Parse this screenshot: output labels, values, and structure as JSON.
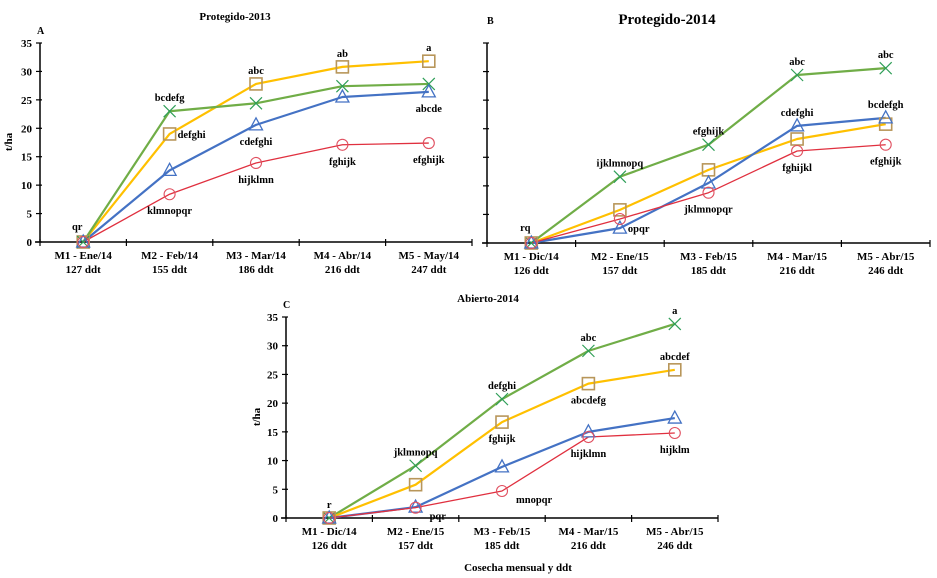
{
  "figure": {
    "x_caption": "Cosecha mensual y ddt"
  },
  "chart_data": [
    {
      "type": "line",
      "panel": "A",
      "title": "Protegido-2013",
      "xlabel": "",
      "ylabel": "t/ha",
      "ylim": [
        0,
        35
      ],
      "yticks": [
        "0",
        "5",
        "10",
        "15",
        "20",
        "25",
        "30",
        "35"
      ],
      "show_ytick_labels": true,
      "grid": false,
      "categories": [
        {
          "line1": "M1 - Ene/14",
          "line2": "127 ddt"
        },
        {
          "line1": "M2 - Feb/14",
          "line2": "155 ddt"
        },
        {
          "line1": "M3 - Mar/14",
          "line2": "186 ddt"
        },
        {
          "line1": "M4 - Abr/14",
          "line2": "216 ddt"
        },
        {
          "line1": "M5 - May/14",
          "line2": "247 ddt"
        }
      ],
      "series": [
        {
          "name": "square",
          "marker": "square",
          "line_color": "#FFC000",
          "marker_color": "#B8965A",
          "values": [
            0,
            19.0,
            27.8,
            30.8,
            31.8
          ]
        },
        {
          "name": "x",
          "marker": "x",
          "line_color": "#70AD47",
          "marker_color": "#2E9E57",
          "values": [
            0,
            23.0,
            24.4,
            27.4,
            27.8
          ]
        },
        {
          "name": "triangle",
          "marker": "triangle",
          "line_color": "#4472C4",
          "marker_color": "#4472C4",
          "values": [
            0,
            12.6,
            20.6,
            25.5,
            26.4
          ]
        },
        {
          "name": "circle",
          "marker": "circle",
          "line_color": "#E0303F",
          "marker_color": "#E05060",
          "values": [
            0,
            8.4,
            13.9,
            17.1,
            17.4
          ]
        }
      ],
      "annotations": [
        {
          "text": "qr",
          "cat": 0,
          "value": 0,
          "pos": "above-left"
        },
        {
          "text": "bcdefg",
          "cat": 1,
          "value": 23.0,
          "pos": "above"
        },
        {
          "text": "defghi",
          "cat": 1,
          "value": 19.0,
          "pos": "right"
        },
        {
          "text": "klmnopqr",
          "cat": 1,
          "value": 8.4,
          "pos": "below"
        },
        {
          "text": "abc",
          "cat": 2,
          "value": 27.8,
          "pos": "above"
        },
        {
          "text": "cdefghi",
          "cat": 2,
          "value": 20.6,
          "pos": "below"
        },
        {
          "text": "hijklmn",
          "cat": 2,
          "value": 13.9,
          "pos": "below"
        },
        {
          "text": "ab",
          "cat": 3,
          "value": 30.8,
          "pos": "above"
        },
        {
          "text": "fghijk",
          "cat": 3,
          "value": 17.1,
          "pos": "below"
        },
        {
          "text": "a",
          "cat": 4,
          "value": 31.8,
          "pos": "above"
        },
        {
          "text": "abcde",
          "cat": 4,
          "value": 26.4,
          "pos": "below"
        },
        {
          "text": "efghijk",
          "cat": 4,
          "value": 17.4,
          "pos": "below"
        }
      ]
    },
    {
      "type": "line",
      "panel": "B",
      "title": "Protegido-2014",
      "xlabel": "",
      "ylabel": "",
      "ylim": [
        0,
        35
      ],
      "yticks": [
        "0",
        "5",
        "10",
        "15",
        "20",
        "25",
        "30",
        "35"
      ],
      "show_ytick_labels": false,
      "grid": false,
      "categories": [
        {
          "line1": "M1 - Dic/14",
          "line2": "126 ddt"
        },
        {
          "line1": "M2 - Ene/15",
          "line2": "157 ddt"
        },
        {
          "line1": "M3 - Feb/15",
          "line2": "185 ddt"
        },
        {
          "line1": "M4 - Mar/15",
          "line2": "216 ddt"
        },
        {
          "line1": "M5 - Abr/15",
          "line2": "246 ddt"
        }
      ],
      "series": [
        {
          "name": "x",
          "marker": "x",
          "line_color": "#70AD47",
          "marker_color": "#2E9E57",
          "values": [
            0,
            11.6,
            17.2,
            29.4,
            30.6
          ]
        },
        {
          "name": "square",
          "marker": "square",
          "line_color": "#FFC000",
          "marker_color": "#B8965A",
          "values": [
            0,
            5.8,
            12.8,
            18.2,
            20.8
          ]
        },
        {
          "name": "triangle",
          "marker": "triangle",
          "line_color": "#4472C4",
          "marker_color": "#4472C4",
          "values": [
            0,
            2.6,
            10.5,
            20.5,
            21.9
          ]
        },
        {
          "name": "circle",
          "marker": "circle",
          "line_color": "#E0303F",
          "marker_color": "#E05060",
          "values": [
            0,
            4.2,
            8.8,
            16.1,
            17.2
          ]
        }
      ],
      "annotations": [
        {
          "text": "rq",
          "cat": 0,
          "value": 0,
          "pos": "above-left"
        },
        {
          "text": "ijklmnopq",
          "cat": 1,
          "value": 11.6,
          "pos": "above"
        },
        {
          "text": "opqr",
          "cat": 1,
          "value": 2.6,
          "pos": "right"
        },
        {
          "text": "efghijk",
          "cat": 2,
          "value": 17.2,
          "pos": "above"
        },
        {
          "text": "jklmnopqr",
          "cat": 2,
          "value": 8.8,
          "pos": "below"
        },
        {
          "text": "abc",
          "cat": 3,
          "value": 29.4,
          "pos": "above"
        },
        {
          "text": "cdefghi",
          "cat": 3,
          "value": 20.5,
          "pos": "above"
        },
        {
          "text": "fghijkl",
          "cat": 3,
          "value": 16.1,
          "pos": "below"
        },
        {
          "text": "abc",
          "cat": 4,
          "value": 30.6,
          "pos": "above"
        },
        {
          "text": "bcdefgh",
          "cat": 4,
          "value": 21.9,
          "pos": "above"
        },
        {
          "text": "efghijk",
          "cat": 4,
          "value": 17.2,
          "pos": "below"
        }
      ]
    },
    {
      "type": "line",
      "panel": "C",
      "title": "Abierto-2014",
      "xlabel": "Cosecha mensual y ddt",
      "ylabel": "t/ha",
      "ylim": [
        0,
        35
      ],
      "yticks": [
        "0",
        "5",
        "10",
        "15",
        "20",
        "25",
        "30",
        "35"
      ],
      "show_ytick_labels": true,
      "grid": false,
      "categories": [
        {
          "line1": "M1 - Dic/14",
          "line2": "126 ddt"
        },
        {
          "line1": "M2 - Ene/15",
          "line2": "157 ddt"
        },
        {
          "line1": "M3 - Feb/15",
          "line2": "185 ddt"
        },
        {
          "line1": "M4 - Mar/15",
          "line2": "216 ddt"
        },
        {
          "line1": "M5 - Abr/15",
          "line2": "246 ddt"
        }
      ],
      "series": [
        {
          "name": "x",
          "marker": "x",
          "line_color": "#70AD47",
          "marker_color": "#2E9E57",
          "values": [
            0,
            9.1,
            20.7,
            29.1,
            33.8
          ]
        },
        {
          "name": "square",
          "marker": "square",
          "line_color": "#FFC000",
          "marker_color": "#B8965A",
          "values": [
            0,
            5.8,
            16.7,
            23.4,
            25.8
          ]
        },
        {
          "name": "triangle",
          "marker": "triangle",
          "line_color": "#4472C4",
          "marker_color": "#4472C4",
          "values": [
            0,
            1.9,
            8.9,
            15.0,
            17.4
          ]
        },
        {
          "name": "circle",
          "marker": "circle",
          "line_color": "#E0303F",
          "marker_color": "#E05060",
          "values": [
            0,
            1.8,
            4.7,
            14.1,
            14.8
          ]
        }
      ],
      "annotations": [
        {
          "text": "r",
          "cat": 0,
          "value": 0,
          "pos": "above"
        },
        {
          "text": "jklmnopq",
          "cat": 1,
          "value": 9.1,
          "pos": "above"
        },
        {
          "text": "pqr",
          "cat": 1,
          "value": 1.8,
          "pos": "right-below"
        },
        {
          "text": "defghi",
          "cat": 2,
          "value": 20.7,
          "pos": "above"
        },
        {
          "text": "fghijk",
          "cat": 2,
          "value": 16.7,
          "pos": "below"
        },
        {
          "text": "mnopqr",
          "cat": 2,
          "value": 4.7,
          "pos": "right-below"
        },
        {
          "text": "abc",
          "cat": 3,
          "value": 29.1,
          "pos": "above"
        },
        {
          "text": "abcdefg",
          "cat": 3,
          "value": 23.4,
          "pos": "below"
        },
        {
          "text": "hijklmn",
          "cat": 3,
          "value": 14.1,
          "pos": "below"
        },
        {
          "text": "a",
          "cat": 4,
          "value": 33.8,
          "pos": "above"
        },
        {
          "text": "abcdef",
          "cat": 4,
          "value": 25.8,
          "pos": "above"
        },
        {
          "text": "hijklm",
          "cat": 4,
          "value": 14.8,
          "pos": "below"
        }
      ]
    }
  ]
}
